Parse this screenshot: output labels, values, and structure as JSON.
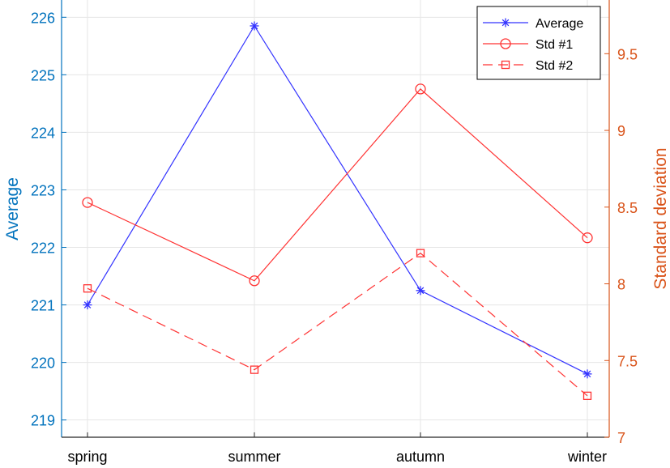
{
  "chart_data": {
    "type": "line",
    "categories": [
      "spring",
      "summer",
      "autumn",
      "winter"
    ],
    "left_axis": {
      "label": "Average",
      "ylim": [
        218.7,
        226.3
      ],
      "ticks": [
        219,
        220,
        221,
        222,
        223,
        224,
        225,
        226
      ],
      "color": "#0072BD"
    },
    "right_axis": {
      "label": "Standard deviation",
      "ylim": [
        7.0,
        9.85
      ],
      "ticks": [
        "7",
        "7.5",
        "8",
        "8.5",
        "9",
        "9.5"
      ],
      "color": "#D95319"
    },
    "grid": true,
    "legend_position": "top-right",
    "series": [
      {
        "name": "Average",
        "axis": "left",
        "values": [
          221.0,
          225.85,
          221.25,
          219.8
        ],
        "color": "#3333FF",
        "marker": "asterisk",
        "dash": "solid"
      },
      {
        "name": "Std #1",
        "axis": "right",
        "values": [
          8.53,
          8.02,
          9.27,
          8.3
        ],
        "color": "#FF3333",
        "marker": "circle",
        "dash": "solid"
      },
      {
        "name": "Std #2",
        "axis": "right",
        "values": [
          7.97,
          7.44,
          8.2,
          7.27
        ],
        "color": "#FF3333",
        "marker": "square",
        "dash": "dashed"
      }
    ]
  }
}
